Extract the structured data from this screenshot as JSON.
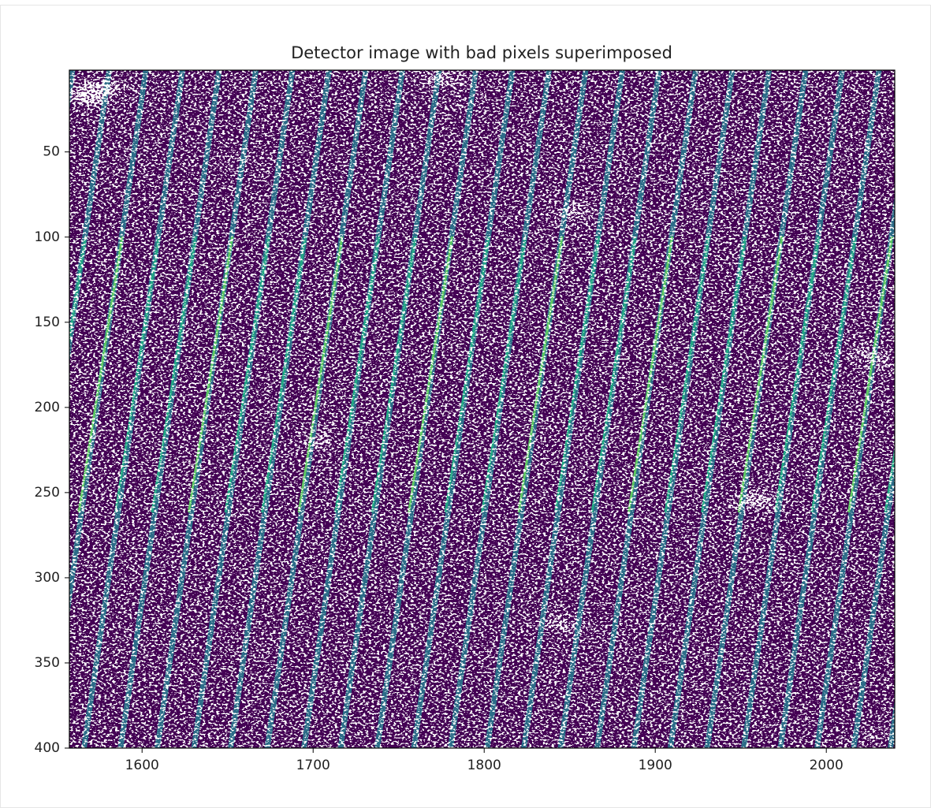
{
  "chart_data": {
    "type": "image",
    "title": "Detector image with bad pixels superimposed",
    "xlim": [
      1557.5,
      2040
    ],
    "xticks": [
      1600,
      1700,
      1800,
      1900,
      2000
    ],
    "ylim": [
      400,
      2
    ],
    "yticks": [
      50,
      100,
      150,
      200,
      250,
      300,
      350,
      400
    ]
  }
}
